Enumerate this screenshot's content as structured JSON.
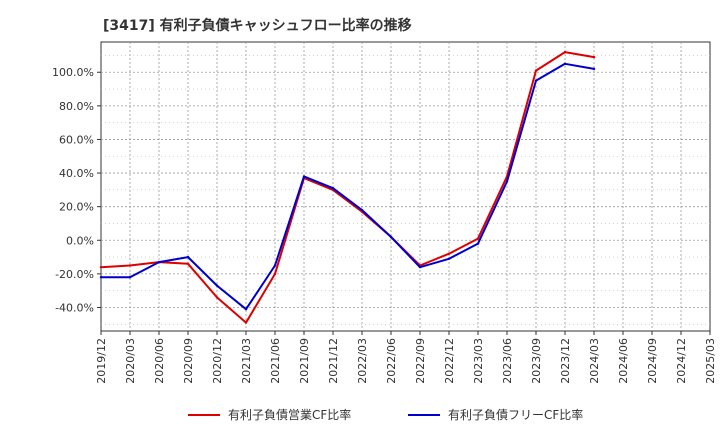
{
  "chart_data": {
    "type": "line",
    "title": "[3417]  有利子負債キャッシュフロー比率の推移",
    "xlabel": "",
    "ylabel": "",
    "ylim": [
      -54,
      118
    ],
    "y_ticks": [
      -40,
      -20,
      0,
      20,
      40,
      60,
      80,
      100
    ],
    "y_tick_labels": [
      "-40.0%",
      "-20.0%",
      "0.0%",
      "20.0%",
      "40.0%",
      "60.0%",
      "80.0%",
      "100.0%"
    ],
    "x_tick_labels": [
      "2019/12",
      "2020/03",
      "2020/06",
      "2020/09",
      "2020/12",
      "2021/03",
      "2021/06",
      "2021/09",
      "2021/12",
      "2022/03",
      "2022/06",
      "2022/09",
      "2022/12",
      "2023/03",
      "2023/06",
      "2023/09",
      "2023/12",
      "2024/03",
      "2024/06",
      "2024/09",
      "2024/12",
      "2025/03"
    ],
    "grid": true,
    "legend_position": "bottom",
    "series": [
      {
        "name": "有利子負債営業CF比率",
        "color": "#dd0000",
        "values": [
          -16,
          -15,
          -13,
          -14,
          -34,
          -49,
          -20,
          37,
          30,
          17,
          2,
          -15,
          -8,
          1,
          38,
          101,
          112,
          109
        ]
      },
      {
        "name": "有利子負債フリーCF比率",
        "color": "#0000cc",
        "values": [
          -22,
          -22,
          -13,
          -10,
          -27,
          -41,
          -15,
          38,
          31,
          18,
          2,
          -16,
          -11,
          -2,
          35,
          95,
          105,
          102
        ]
      }
    ]
  }
}
